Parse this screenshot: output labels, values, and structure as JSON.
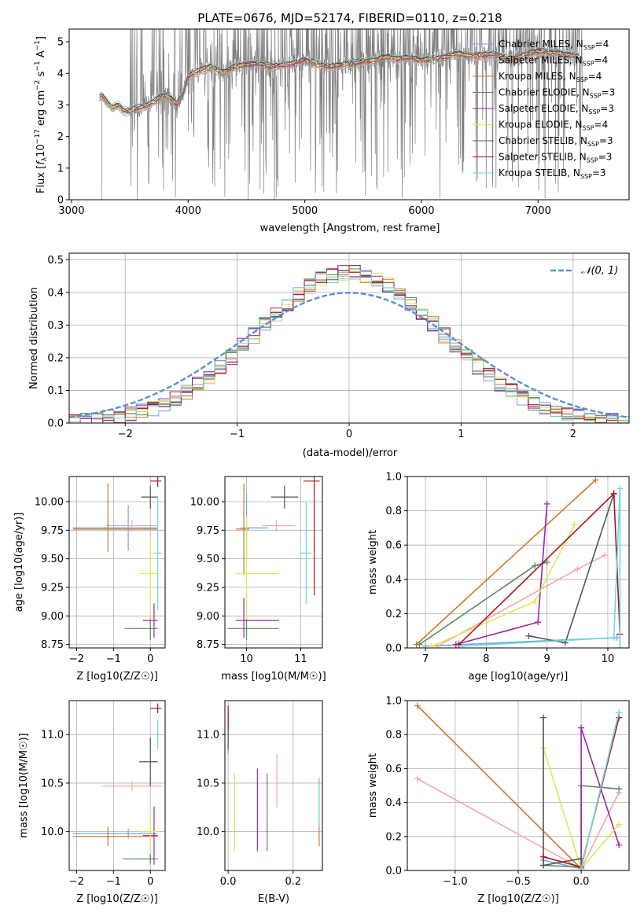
{
  "figure_title": "PLATE=0676, MJD=52174, FIBERID=0110, z=0.218",
  "colors": {
    "Chabrier MILES": "#6fa8dc",
    "Salpeter MILES": "#f4a6a6",
    "Kroupa MILES": "#d2762a",
    "Chabrier ELODIE": "#5b8a5b",
    "Salpeter ELODIE": "#9b27a8",
    "Kroupa ELODIE": "#d6ec52",
    "Chabrier STELIB": "#555555",
    "Salpeter STELIB": "#b0131d",
    "Kroupa STELIB": "#6fd8dc",
    "data": "#808080",
    "gaussian": "#5b8fd8"
  },
  "chart_data": [
    {
      "id": "spectrum",
      "type": "line",
      "title": "PLATE=0676, MJD=52174, FIBERID=0110, z=0.218",
      "xlabel": "wavelength [Angstrom, rest frame]",
      "ylabel": "Flux [f_λ 10^-17 erg cm^-2 s^-1 A^-1]",
      "xlim": [
        2980,
        7780
      ],
      "ylim": [
        0,
        5.4
      ],
      "xticks": [
        3000,
        4000,
        5000,
        6000,
        7000
      ],
      "yticks": [
        0,
        1,
        2,
        3,
        4,
        5
      ],
      "grid": false,
      "legend_position": "top-right",
      "legend": [
        {
          "name": "Chabrier MILES",
          "nssp": "4"
        },
        {
          "name": "Salpeter MILES",
          "nssp": "4"
        },
        {
          "name": "Kroupa MILES",
          "nssp": "4"
        },
        {
          "name": "Chabrier ELODIE",
          "nssp": "3"
        },
        {
          "name": "Salpeter ELODIE",
          "nssp": "3"
        },
        {
          "name": "Kroupa ELODIE",
          "nssp": "4"
        },
        {
          "name": "Chabrier STELIB",
          "nssp": "3"
        },
        {
          "name": "Salpeter STELIB",
          "nssp": "3"
        },
        {
          "name": "Kroupa STELIB",
          "nssp": "3"
        }
      ],
      "model_continuum": {
        "x": [
          3230,
          3260,
          3300,
          3350,
          3400,
          3450,
          3500,
          3550,
          3600,
          3650,
          3700,
          3750,
          3800,
          3850,
          3900,
          3950,
          4000,
          4100,
          4200,
          4300,
          4400,
          4500,
          4600,
          4700,
          4800,
          4900,
          5000,
          5100,
          5200,
          5300,
          5400,
          5500,
          5600,
          5700,
          5800,
          5900,
          6000,
          6100,
          6200,
          6300,
          6400,
          6500,
          6600,
          6700,
          6800,
          6900,
          7000,
          7100,
          7200,
          7300,
          7350
        ],
        "y": [
          3.2,
          3.3,
          3.1,
          2.9,
          3.0,
          2.8,
          2.8,
          2.9,
          2.9,
          3.0,
          3.1,
          3.2,
          3.3,
          3.2,
          3.0,
          3.3,
          3.9,
          4.1,
          4.2,
          4.0,
          4.2,
          4.25,
          4.3,
          4.2,
          4.25,
          4.3,
          4.4,
          4.3,
          4.2,
          4.25,
          4.3,
          4.35,
          4.4,
          4.5,
          4.45,
          4.5,
          4.4,
          4.45,
          4.5,
          4.6,
          4.55,
          4.55,
          4.6,
          4.5,
          4.45,
          4.6,
          4.7,
          4.65,
          4.6,
          4.55,
          4.5
        ]
      }
    },
    {
      "id": "residuals",
      "type": "step",
      "xlabel": "(data-model)/error",
      "ylabel": "Normed distribution",
      "xlim": [
        -2.5,
        2.5
      ],
      "ylim": [
        0,
        0.52
      ],
      "xticks": [
        -2,
        -1,
        0,
        1,
        2
      ],
      "yticks": [
        0.0,
        0.1,
        0.2,
        0.3,
        0.4,
        0.5
      ],
      "grid": true,
      "legend_position": "top-right",
      "legend": "𝒩(0, 1)",
      "bin_width": 0.1
    },
    {
      "id": "age_vs_Z",
      "type": "errorbar",
      "xlabel": "Z [log10(Z/Z☉)]",
      "ylabel": "age  [log10(age/yr)]",
      "xlim": [
        -2.2,
        0.4
      ],
      "ylim": [
        8.72,
        10.22
      ],
      "xticks": [
        -2,
        -1,
        0
      ],
      "yticks": [
        8.75,
        9.0,
        9.25,
        9.5,
        9.75,
        10.0
      ],
      "grid": true,
      "points": [
        {
          "model": "Chabrier MILES",
          "x": -0.6,
          "xerr": [
            1.5,
            0.8
          ],
          "y": 9.77,
          "yerr": [
            0.2,
            0.2
          ]
        },
        {
          "model": "Salpeter MILES",
          "x": -0.5,
          "xerr": [
            0.7,
            0.7
          ],
          "y": 9.79,
          "yerr": [
            0.05,
            0.05
          ]
        },
        {
          "model": "Kroupa MILES",
          "x": -1.15,
          "xerr": [
            0.95,
            1.35
          ],
          "y": 9.76,
          "yerr": [
            0.2,
            0.4
          ]
        },
        {
          "model": "Chabrier ELODIE",
          "x": 0.0,
          "xerr": [
            0.7,
            0.2
          ],
          "y": 8.89,
          "yerr": [
            0.1,
            0.1
          ]
        },
        {
          "model": "Salpeter ELODIE",
          "x": 0.1,
          "xerr": [
            0.3,
            0.1
          ],
          "y": 8.96,
          "yerr": [
            0.15,
            0.15
          ]
        },
        {
          "model": "Kroupa ELODIE",
          "x": 0.0,
          "xerr": [
            0.3,
            0.2
          ],
          "y": 9.37,
          "yerr": [
            0.4,
            0.3
          ]
        },
        {
          "model": "Chabrier STELIB",
          "x": 0.0,
          "xerr": [
            0.25,
            0.2
          ],
          "y": 10.04,
          "yerr": [
            0.1,
            0.1
          ]
        },
        {
          "model": "Salpeter STELIB",
          "x": 0.2,
          "xerr": [
            0.2,
            0.1
          ],
          "y": 10.18,
          "yerr": [
            0.05,
            0.05
          ]
        },
        {
          "model": "Kroupa STELIB",
          "x": 0.2,
          "xerr": [
            0.1,
            0.1
          ],
          "y": 9.55,
          "yerr": [
            0.5,
            0.5
          ]
        }
      ]
    },
    {
      "id": "age_vs_mass",
      "type": "errorbar",
      "xlabel": "mass [log10(M/M☉)]",
      "ylabel": "",
      "xlim": [
        9.6,
        11.4
      ],
      "ylim": [
        8.72,
        10.22
      ],
      "xticks": [
        10,
        11
      ],
      "yticks": [
        8.75,
        9.0,
        9.25,
        9.5,
        9.75,
        10.0
      ],
      "grid": true,
      "points": [
        {
          "model": "Chabrier MILES",
          "x": 10.0,
          "xerr": [
            0.1,
            0.4
          ],
          "y": 9.77,
          "yerr": [
            0.3,
            0.3
          ]
        },
        {
          "model": "Salpeter MILES",
          "x": 10.55,
          "xerr": [
            0.25,
            0.35
          ],
          "y": 9.79,
          "yerr": [
            0.05,
            0.05
          ]
        },
        {
          "model": "Kroupa MILES",
          "x": 9.95,
          "xerr": [
            0.15,
            0.1
          ],
          "y": 9.76,
          "yerr": [
            0.4,
            0.4
          ]
        },
        {
          "model": "Chabrier ELODIE",
          "x": 10.0,
          "xerr": [
            0.35,
            0.6
          ],
          "y": 8.89,
          "yerr": [
            0.1,
            0.1
          ]
        },
        {
          "model": "Salpeter ELODIE",
          "x": 9.95,
          "xerr": [
            0.15,
            0.65
          ],
          "y": 8.96,
          "yerr": [
            0.15,
            0.2
          ]
        },
        {
          "model": "Kroupa ELODIE",
          "x": 10.0,
          "xerr": [
            0.2,
            0.6
          ],
          "y": 9.37,
          "yerr": [
            0.4,
            0.5
          ]
        },
        {
          "model": "Chabrier STELIB",
          "x": 10.7,
          "xerr": [
            0.25,
            0.25
          ],
          "y": 10.04,
          "yerr": [
            0.1,
            0.1
          ]
        },
        {
          "model": "Salpeter STELIB",
          "x": 11.25,
          "xerr": [
            0.2,
            0.1
          ],
          "y": 10.18,
          "yerr": [
            1.0,
            0.05
          ]
        },
        {
          "model": "Kroupa STELIB",
          "x": 11.1,
          "xerr": [
            0.1,
            0.1
          ],
          "y": 9.55,
          "yerr": [
            0.45,
            0.45
          ]
        }
      ]
    },
    {
      "id": "weight_vs_age",
      "type": "line",
      "xlabel": "age  [log10(age/yr)]",
      "ylabel": "mass weight",
      "xlim": [
        6.7,
        10.35
      ],
      "ylim": [
        0,
        1.0
      ],
      "xticks": [
        7,
        8,
        9,
        10
      ],
      "yticks": [
        0.0,
        0.2,
        0.4,
        0.6,
        0.8,
        1.0
      ],
      "grid": true,
      "series": [
        {
          "model": "Chabrier MILES",
          "x": [
            7.0,
            10.15
          ],
          "y": [
            0.01,
            0.06
          ]
        },
        {
          "model": "Salpeter MILES",
          "x": [
            7.2,
            9.5,
            9.95
          ],
          "y": [
            0.01,
            0.46,
            0.54
          ]
        },
        {
          "model": "Kroupa MILES",
          "x": [
            6.85,
            9.8
          ],
          "y": [
            0.02,
            0.98
          ]
        },
        {
          "model": "Chabrier ELODIE",
          "x": [
            6.9,
            8.8,
            9.0
          ],
          "y": [
            0.02,
            0.48,
            0.5
          ]
        },
        {
          "model": "Salpeter ELODIE",
          "x": [
            7.5,
            8.85,
            9.0
          ],
          "y": [
            0.02,
            0.15,
            0.84
          ]
        },
        {
          "model": "Kroupa ELODIE",
          "x": [
            7.1,
            8.8,
            9.45
          ],
          "y": [
            0.01,
            0.27,
            0.72
          ]
        },
        {
          "model": "Chabrier STELIB",
          "x": [
            8.7,
            9.3,
            10.1
          ],
          "y": [
            0.07,
            0.03,
            0.9
          ]
        },
        {
          "model": "Salpeter STELIB",
          "x": [
            7.55,
            10.1,
            10.2
          ],
          "y": [
            0.02,
            0.9,
            0.08
          ]
        },
        {
          "model": "Kroupa STELIB",
          "x": [
            7.6,
            10.1,
            10.2,
            10.2
          ],
          "y": [
            0.01,
            0.06,
            0.93,
            0.0
          ]
        }
      ]
    },
    {
      "id": "mass_vs_Z",
      "type": "errorbar",
      "xlabel": "Z [log10(Z/Z☉)]",
      "ylabel": "mass [log10(M/M☉)]",
      "xlim": [
        -2.2,
        0.4
      ],
      "ylim": [
        9.6,
        11.35
      ],
      "xticks": [
        -2,
        -1,
        0
      ],
      "yticks": [
        10.0,
        10.5,
        11.0
      ],
      "grid": true,
      "points": [
        {
          "model": "Chabrier MILES",
          "x": -0.6,
          "xerr": [
            1.5,
            0.8
          ],
          "y": 9.98,
          "yerr": [
            0.05,
            0.05
          ]
        },
        {
          "model": "Salpeter MILES",
          "x": -0.5,
          "xerr": [
            0.8,
            0.8
          ],
          "y": 10.47,
          "yerr": [
            0.05,
            0.05
          ]
        },
        {
          "model": "Kroupa MILES",
          "x": -1.15,
          "xerr": [
            0.95,
            1.35
          ],
          "y": 9.95,
          "yerr": [
            0.1,
            0.1
          ]
        },
        {
          "model": "Chabrier ELODIE",
          "x": 0.0,
          "xerr": [
            0.75,
            0.2
          ],
          "y": 9.72,
          "yerr": [
            0.05,
            0.05
          ]
        },
        {
          "model": "Salpeter ELODIE",
          "x": 0.1,
          "xerr": [
            0.3,
            0.1
          ],
          "y": 9.96,
          "yerr": [
            0.3,
            0.3
          ]
        },
        {
          "model": "Kroupa ELODIE",
          "x": 0.0,
          "xerr": [
            0.3,
            0.2
          ],
          "y": 10.0,
          "yerr": [
            0.2,
            0.2
          ]
        },
        {
          "model": "Chabrier STELIB",
          "x": 0.0,
          "xerr": [
            0.3,
            0.2
          ],
          "y": 10.72,
          "yerr": [
            0.25,
            0.25
          ]
        },
        {
          "model": "Salpeter STELIB",
          "x": 0.2,
          "xerr": [
            0.2,
            0.1
          ],
          "y": 11.27,
          "yerr": [
            0.05,
            0.05
          ]
        },
        {
          "model": "Kroupa STELIB",
          "x": 0.2,
          "xerr": [
            0.05,
            0.05
          ],
          "y": 11.0,
          "yerr": [
            0.15,
            0.15
          ]
        }
      ]
    },
    {
      "id": "mass_vs_EBV",
      "type": "errorbar",
      "xlabel": "E(B-V)",
      "ylabel": "",
      "xlim": [
        -0.01,
        0.29
      ],
      "ylim": [
        9.6,
        11.35
      ],
      "xticks": [
        0.0,
        0.2
      ],
      "yticks": [
        10.0,
        10.5,
        11.0
      ],
      "grid": true,
      "points": [
        {
          "model": "Chabrier MILES",
          "x": 0.0,
          "y": 11.0,
          "yerr": [
            0.2,
            0.2
          ]
        },
        {
          "model": "Salpeter MILES",
          "x": 0.15,
          "y": 10.5,
          "yerr": [
            0.25,
            0.3
          ]
        },
        {
          "model": "Kroupa MILES",
          "x": 0.28,
          "y": 10.2,
          "yerr": [
            0.35,
            0.35
          ]
        },
        {
          "model": "Chabrier ELODIE",
          "x": 0.12,
          "y": 10.2,
          "yerr": [
            0.4,
            0.4
          ]
        },
        {
          "model": "Salpeter ELODIE",
          "x": 0.09,
          "y": 10.2,
          "yerr": [
            0.4,
            0.45
          ]
        },
        {
          "model": "Kroupa ELODIE",
          "x": 0.02,
          "y": 10.2,
          "yerr": [
            0.4,
            0.4
          ]
        },
        {
          "model": "Chabrier STELIB",
          "x": 0.0,
          "y": 11.1,
          "yerr": [
            0.25,
            0.15
          ]
        },
        {
          "model": "Salpeter STELIB",
          "x": 0.0,
          "y": 11.15,
          "yerr": [
            0.1,
            0.15
          ]
        },
        {
          "model": "Kroupa STELIB",
          "x": 0.28,
          "y": 10.3,
          "yerr": [
            0.25,
            0.25
          ]
        }
      ]
    },
    {
      "id": "weight_vs_Z",
      "type": "line",
      "xlabel": "Z [log10(Z/Z☉)]",
      "ylabel": "mass weight",
      "xlim": [
        -1.38,
        0.38
      ],
      "ylim": [
        0,
        1.0
      ],
      "xticks": [
        -1.0,
        -0.5,
        0.0
      ],
      "yticks": [
        0.0,
        0.2,
        0.4,
        0.6,
        0.8,
        1.0
      ],
      "grid": true,
      "series": [
        {
          "model": "Chabrier MILES",
          "x": [
            -0.3,
            0.0,
            0.3
          ],
          "y": [
            0.06,
            0.01,
            0.93
          ]
        },
        {
          "model": "Salpeter MILES",
          "x": [
            -1.3,
            0.0,
            0.3
          ],
          "y": [
            0.54,
            0.01,
            0.46
          ]
        },
        {
          "model": "Kroupa MILES",
          "x": [
            -1.3,
            0.0
          ],
          "y": [
            0.97,
            0.01
          ]
        },
        {
          "model": "Chabrier ELODIE",
          "x": [
            -0.3,
            0.0,
            0.0,
            0.3
          ],
          "y": [
            0.03,
            0.02,
            0.5,
            0.48
          ]
        },
        {
          "model": "Salpeter ELODIE",
          "x": [
            0.0,
            0.0,
            0.3
          ],
          "y": [
            0.01,
            0.84,
            0.15
          ]
        },
        {
          "model": "Kroupa ELODIE",
          "x": [
            -0.3,
            0.0,
            0.3
          ],
          "y": [
            0.72,
            0.01,
            0.27
          ]
        },
        {
          "model": "Chabrier STELIB",
          "x": [
            -0.3,
            -0.3,
            0.0
          ],
          "y": [
            0.9,
            0.03,
            0.07
          ]
        },
        {
          "model": "Salpeter STELIB",
          "x": [
            -0.3,
            0.0,
            0.3
          ],
          "y": [
            0.08,
            0.02,
            0.9
          ]
        },
        {
          "model": "Kroupa STELIB",
          "x": [
            0.0,
            0.3
          ],
          "y": [
            0.01,
            0.93
          ]
        }
      ]
    }
  ]
}
